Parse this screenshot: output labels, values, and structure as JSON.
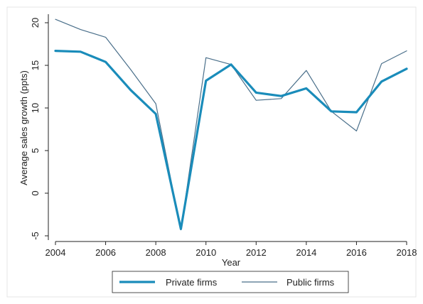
{
  "chart_data": {
    "type": "line",
    "title": "",
    "xlabel": "Year",
    "ylabel": "Average sales growth (ppts)",
    "x": [
      2004,
      2005,
      2006,
      2007,
      2008,
      2009,
      2010,
      2011,
      2012,
      2013,
      2014,
      2015,
      2016,
      2017,
      2018
    ],
    "xticks": [
      2004,
      2006,
      2008,
      2010,
      2012,
      2014,
      2016,
      2018
    ],
    "yticks": [
      -5,
      0,
      5,
      10,
      15,
      20
    ],
    "xlim": [
      2004,
      2018
    ],
    "ylim": [
      -5.5,
      21
    ],
    "grid": false,
    "legend_position": "bottom",
    "series": [
      {
        "name": "Private firms",
        "color": "#1a8cba",
        "style": "thick",
        "values": [
          16.7,
          16.6,
          15.4,
          12.1,
          9.3,
          -4.2,
          13.2,
          15.1,
          11.8,
          11.4,
          12.3,
          9.6,
          9.5,
          13.1,
          14.6
        ]
      },
      {
        "name": "Public firms",
        "color": "#4a6f8a",
        "style": "thin",
        "values": [
          20.4,
          19.2,
          18.3,
          14.5,
          10.5,
          -4.3,
          15.9,
          15.1,
          10.9,
          11.1,
          14.4,
          9.6,
          7.3,
          15.2,
          16.7
        ]
      }
    ]
  }
}
